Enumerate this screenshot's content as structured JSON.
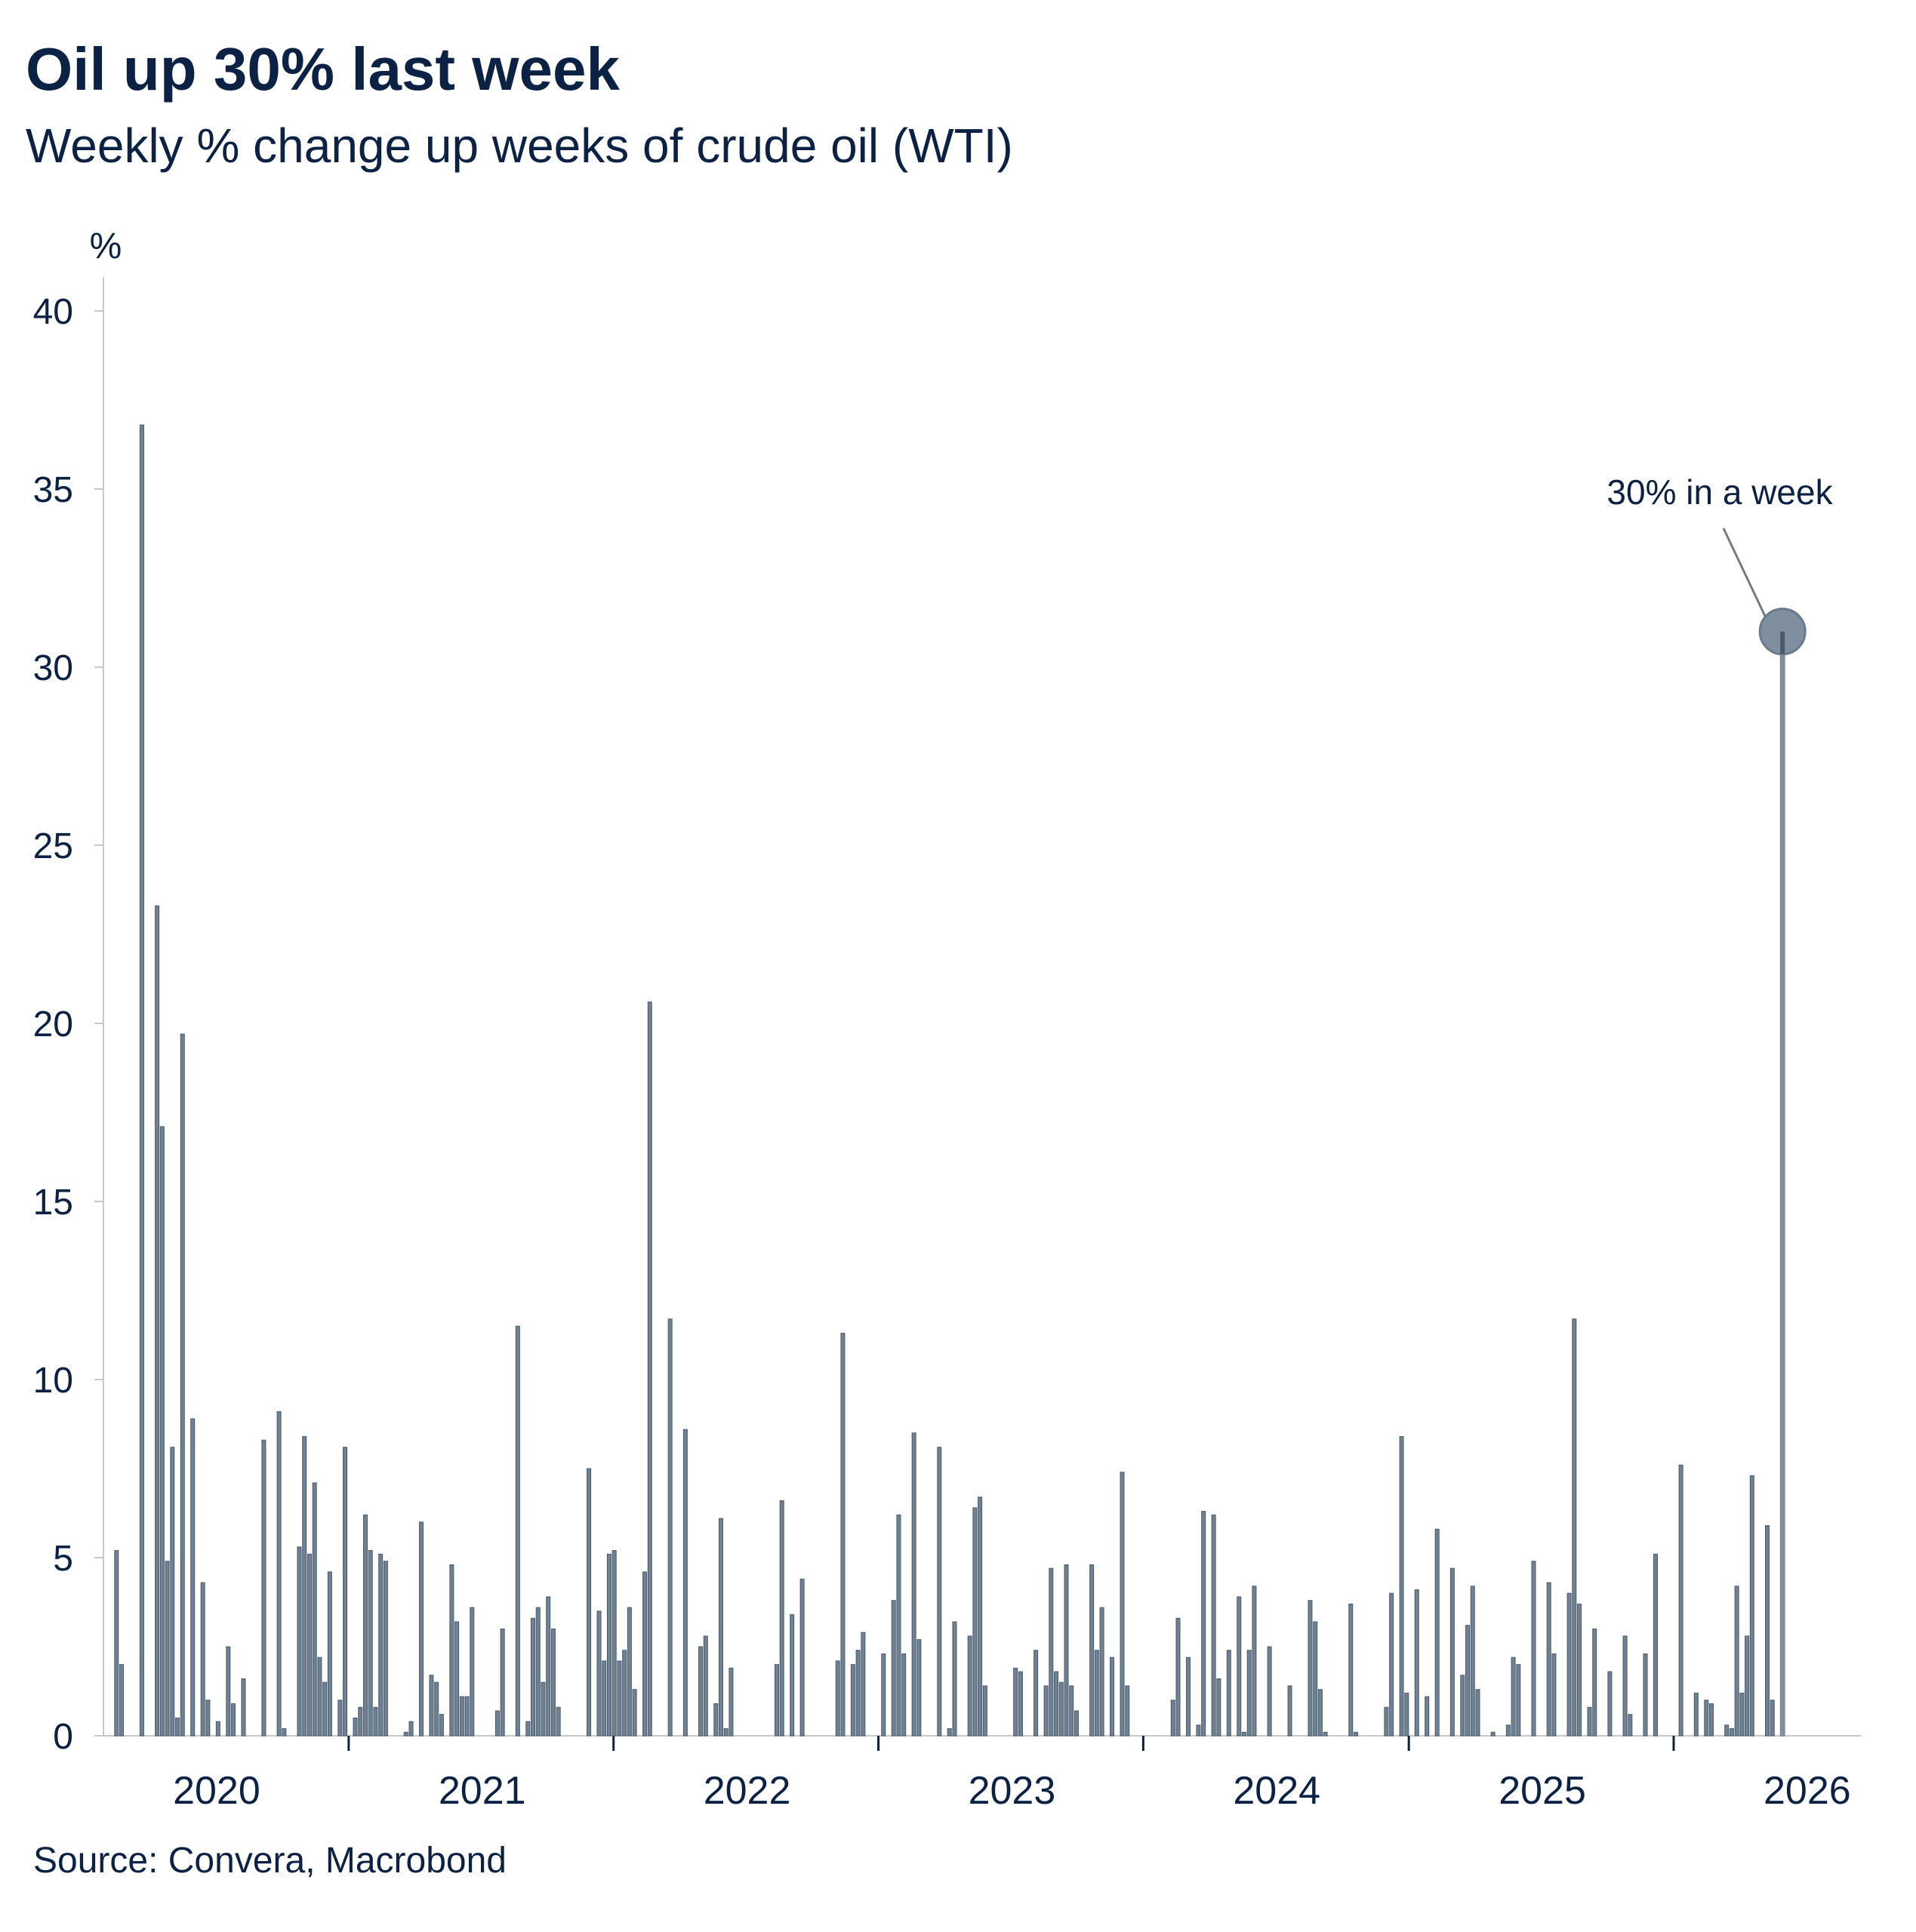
{
  "title": "Oil up 30% last week",
  "subtitle": "Weekly % change up weeks of crude oil (WTI)",
  "source": "Source: Convera, Macrobond",
  "colors": {
    "bar": "#6f8294",
    "bar_edge": "#4a5a6a",
    "marker": "#7f8fa0",
    "text": "#0b2244",
    "axis": "#c8c8c8"
  },
  "chart_data": {
    "type": "bar",
    "ylabel": "%",
    "ylim": [
      0,
      40
    ],
    "yticks": [
      0,
      5,
      10,
      15,
      20,
      25,
      30,
      35,
      40
    ],
    "xlim": [
      "2019-07-29",
      "2026-03-16"
    ],
    "xtick_labels": [
      "2020",
      "2021",
      "2022",
      "2023",
      "2024",
      "2025",
      "2026"
    ],
    "xtick_dates": [
      "2020-01-01",
      "2021-01-01",
      "2022-01-01",
      "2023-01-01",
      "2024-01-01",
      "2025-01-01",
      "2026-01-01"
    ],
    "xtick_marks": [
      "2020-07-01",
      "2021-07-01",
      "2022-07-01",
      "2023-07-01",
      "2024-07-01",
      "2025-07-01"
    ],
    "grid": false,
    "annotation": {
      "text": "30% in a week",
      "date": "2026-03-06",
      "value": 31
    },
    "series": [
      {
        "name": "",
        "points": [
          [
            "2019-08-16",
            5.2
          ],
          [
            "2019-08-23",
            2.0
          ],
          [
            "2019-09-20",
            36.8
          ],
          [
            "2019-10-11",
            23.3
          ],
          [
            "2019-10-18",
            17.1
          ],
          [
            "2019-10-25",
            4.9
          ],
          [
            "2019-11-01",
            8.1
          ],
          [
            "2019-11-08",
            0.5
          ],
          [
            "2019-11-15",
            19.7
          ],
          [
            "2019-11-29",
            8.9
          ],
          [
            "2019-12-13",
            4.3
          ],
          [
            "2019-12-20",
            1.0
          ],
          [
            "2020-01-03",
            0.4
          ],
          [
            "2020-01-17",
            2.5
          ],
          [
            "2020-01-24",
            0.9
          ],
          [
            "2020-02-07",
            1.6
          ],
          [
            "2020-03-06",
            8.3
          ],
          [
            "2020-03-27",
            9.1
          ],
          [
            "2020-04-03",
            0.2
          ],
          [
            "2020-04-24",
            5.3
          ],
          [
            "2020-05-01",
            8.4
          ],
          [
            "2020-05-08",
            5.1
          ],
          [
            "2020-05-15",
            7.1
          ],
          [
            "2020-05-22",
            2.2
          ],
          [
            "2020-05-29",
            1.5
          ],
          [
            "2020-06-05",
            4.6
          ],
          [
            "2020-06-19",
            1.0
          ],
          [
            "2020-06-26",
            8.1
          ],
          [
            "2020-07-10",
            0.5
          ],
          [
            "2020-07-17",
            0.8
          ],
          [
            "2020-07-24",
            6.2
          ],
          [
            "2020-07-31",
            5.2
          ],
          [
            "2020-08-07",
            0.8
          ],
          [
            "2020-08-14",
            5.1
          ],
          [
            "2020-08-21",
            4.9
          ],
          [
            "2020-09-18",
            0.1
          ],
          [
            "2020-09-25",
            0.4
          ],
          [
            "2020-10-09",
            6.0
          ],
          [
            "2020-10-23",
            1.7
          ],
          [
            "2020-10-30",
            1.5
          ],
          [
            "2020-11-06",
            0.6
          ],
          [
            "2020-11-20",
            4.8
          ],
          [
            "2020-11-27",
            3.2
          ],
          [
            "2020-12-04",
            1.1
          ],
          [
            "2020-12-11",
            1.1
          ],
          [
            "2020-12-18",
            3.6
          ],
          [
            "2021-01-22",
            0.7
          ],
          [
            "2021-01-29",
            3.0
          ],
          [
            "2021-02-19",
            11.5
          ],
          [
            "2021-03-05",
            0.4
          ],
          [
            "2021-03-12",
            3.3
          ],
          [
            "2021-03-19",
            3.6
          ],
          [
            "2021-03-26",
            1.5
          ],
          [
            "2021-04-02",
            3.9
          ],
          [
            "2021-04-09",
            3.0
          ],
          [
            "2021-04-16",
            0.8
          ],
          [
            "2021-05-28",
            7.5
          ],
          [
            "2021-06-11",
            3.5
          ],
          [
            "2021-06-18",
            2.1
          ],
          [
            "2021-06-25",
            5.1
          ],
          [
            "2021-07-02",
            5.2
          ],
          [
            "2021-07-09",
            2.1
          ],
          [
            "2021-07-16",
            2.4
          ],
          [
            "2021-07-23",
            3.6
          ],
          [
            "2021-07-30",
            1.3
          ],
          [
            "2021-08-13",
            4.6
          ],
          [
            "2021-08-20",
            20.6
          ],
          [
            "2021-09-17",
            11.7
          ],
          [
            "2021-10-08",
            8.6
          ],
          [
            "2021-10-29",
            2.5
          ],
          [
            "2021-11-05",
            2.8
          ],
          [
            "2021-11-19",
            0.9
          ],
          [
            "2021-11-26",
            6.1
          ],
          [
            "2021-12-03",
            0.2
          ],
          [
            "2021-12-10",
            1.9
          ],
          [
            "2022-02-11",
            2.0
          ],
          [
            "2022-02-18",
            6.6
          ],
          [
            "2022-03-04",
            3.4
          ],
          [
            "2022-03-18",
            4.4
          ],
          [
            "2022-05-06",
            2.1
          ],
          [
            "2022-05-13",
            11.3
          ],
          [
            "2022-05-27",
            2.0
          ],
          [
            "2022-06-03",
            2.4
          ],
          [
            "2022-06-10",
            2.9
          ],
          [
            "2022-07-08",
            2.3
          ],
          [
            "2022-07-22",
            3.8
          ],
          [
            "2022-07-29",
            6.2
          ],
          [
            "2022-08-05",
            2.3
          ],
          [
            "2022-08-19",
            8.5
          ],
          [
            "2022-08-26",
            2.7
          ],
          [
            "2022-09-23",
            8.1
          ],
          [
            "2022-10-07",
            0.2
          ],
          [
            "2022-10-14",
            3.2
          ],
          [
            "2022-11-04",
            2.8
          ],
          [
            "2022-11-11",
            6.4
          ],
          [
            "2022-11-18",
            6.7
          ],
          [
            "2022-11-25",
            1.4
          ],
          [
            "2023-01-06",
            1.9
          ],
          [
            "2023-01-13",
            1.8
          ],
          [
            "2023-02-03",
            2.4
          ],
          [
            "2023-02-17",
            1.4
          ],
          [
            "2023-02-24",
            4.7
          ],
          [
            "2023-03-03",
            1.8
          ],
          [
            "2023-03-10",
            1.5
          ],
          [
            "2023-03-17",
            4.8
          ],
          [
            "2023-03-24",
            1.4
          ],
          [
            "2023-03-31",
            0.7
          ],
          [
            "2023-04-21",
            4.8
          ],
          [
            "2023-04-28",
            2.4
          ],
          [
            "2023-05-05",
            3.6
          ],
          [
            "2023-05-19",
            2.2
          ],
          [
            "2023-06-02",
            7.4
          ],
          [
            "2023-06-09",
            1.4
          ],
          [
            "2023-08-11",
            1.0
          ],
          [
            "2023-08-18",
            3.3
          ],
          [
            "2023-09-01",
            2.2
          ],
          [
            "2023-09-15",
            0.3
          ],
          [
            "2023-09-22",
            6.3
          ],
          [
            "2023-10-06",
            6.2
          ],
          [
            "2023-10-13",
            1.6
          ],
          [
            "2023-10-27",
            2.4
          ],
          [
            "2023-11-10",
            3.9
          ],
          [
            "2023-11-17",
            0.1
          ],
          [
            "2023-11-24",
            2.4
          ],
          [
            "2023-12-01",
            4.2
          ],
          [
            "2023-12-22",
            2.5
          ],
          [
            "2024-01-19",
            1.4
          ],
          [
            "2024-02-16",
            3.8
          ],
          [
            "2024-02-23",
            3.2
          ],
          [
            "2024-03-01",
            1.3
          ],
          [
            "2024-03-08",
            0.1
          ],
          [
            "2024-04-12",
            3.7
          ],
          [
            "2024-04-19",
            0.1
          ],
          [
            "2024-05-31",
            0.8
          ],
          [
            "2024-06-07",
            4.0
          ],
          [
            "2024-06-21",
            8.4
          ],
          [
            "2024-06-28",
            1.2
          ],
          [
            "2024-07-12",
            4.1
          ],
          [
            "2024-07-26",
            1.1
          ],
          [
            "2024-08-09",
            5.8
          ],
          [
            "2024-08-30",
            4.7
          ],
          [
            "2024-09-13",
            1.7
          ],
          [
            "2024-09-20",
            3.1
          ],
          [
            "2024-09-27",
            4.2
          ],
          [
            "2024-10-04",
            1.3
          ],
          [
            "2024-10-25",
            0.1
          ],
          [
            "2024-11-15",
            0.3
          ],
          [
            "2024-11-22",
            2.2
          ],
          [
            "2024-11-29",
            2.0
          ],
          [
            "2024-12-20",
            4.9
          ],
          [
            "2025-01-10",
            4.3
          ],
          [
            "2025-01-17",
            2.3
          ],
          [
            "2025-02-07",
            4.0
          ],
          [
            "2025-02-14",
            11.7
          ],
          [
            "2025-02-21",
            3.7
          ],
          [
            "2025-03-07",
            0.8
          ],
          [
            "2025-03-14",
            3.0
          ],
          [
            "2025-04-04",
            1.8
          ],
          [
            "2025-04-25",
            2.8
          ],
          [
            "2025-05-02",
            0.6
          ],
          [
            "2025-05-23",
            2.3
          ],
          [
            "2025-06-06",
            5.1
          ],
          [
            "2025-07-11",
            7.6
          ],
          [
            "2025-08-01",
            1.2
          ],
          [
            "2025-08-15",
            1.0
          ],
          [
            "2025-08-22",
            0.9
          ],
          [
            "2025-09-12",
            0.3
          ],
          [
            "2025-09-19",
            0.2
          ],
          [
            "2025-09-26",
            4.2
          ],
          [
            "2025-10-03",
            1.2
          ],
          [
            "2025-10-10",
            2.8
          ],
          [
            "2025-10-17",
            7.3
          ],
          [
            "2025-11-07",
            5.9
          ],
          [
            "2025-11-14",
            1.0
          ],
          [
            "2025-11-28",
            31.0
          ]
        ]
      }
    ]
  }
}
